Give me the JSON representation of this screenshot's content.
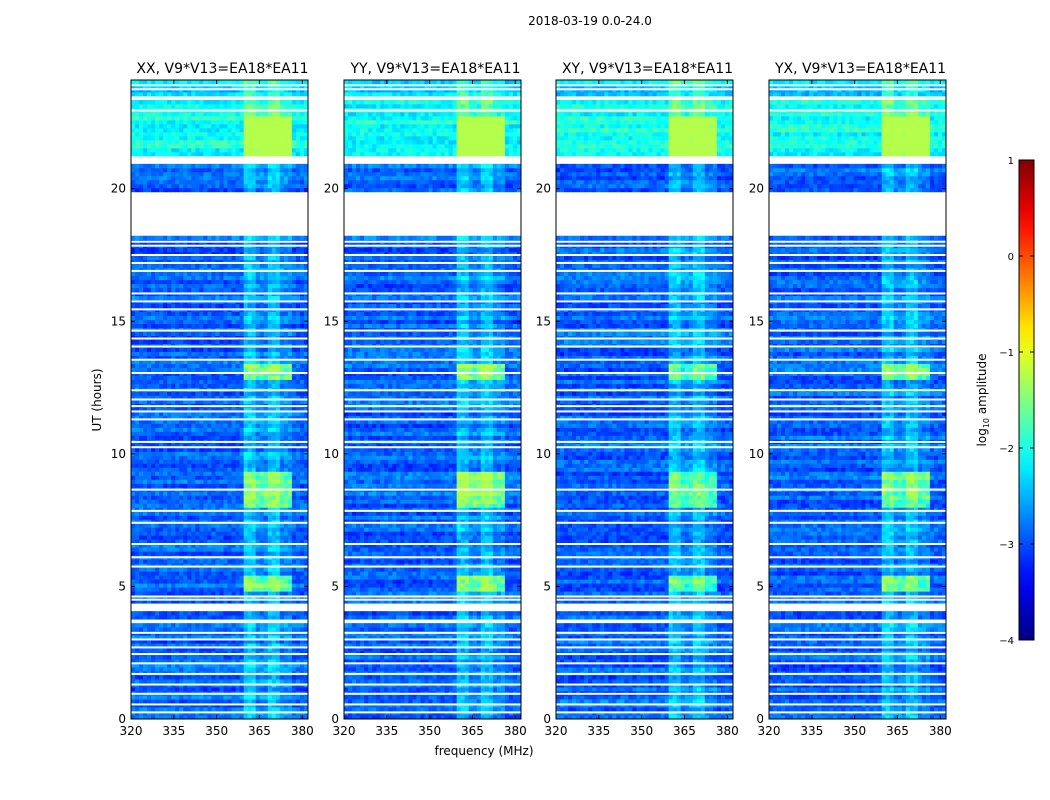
{
  "chart_data": {
    "type": "heatmap",
    "suptitle": "2018-03-19 0.0-24.0",
    "xlabel": "frequency (MHz)",
    "ylabel": "UT (hours)",
    "xlim": [
      320,
      382
    ],
    "ylim": [
      0,
      24.1
    ],
    "xticks": [
      320,
      335,
      350,
      365,
      380
    ],
    "yticks": [
      0,
      5,
      10,
      15,
      20
    ],
    "panels": [
      {
        "title": "XX, V9*V13=EA18*EA11",
        "gain": 1.0
      },
      {
        "title": "YY, V9*V13=EA18*EA11",
        "gain": 1.15
      },
      {
        "title": "XY, V9*V13=EA18*EA11",
        "gain": 0.9
      },
      {
        "title": "YX, V9*V13=EA18*EA11",
        "gain": 0.95
      }
    ],
    "colorbar": {
      "label_prefix": "log",
      "label_sub": "10",
      "label_suffix": " amplitude",
      "min": -4,
      "max": 1,
      "ticks": [
        -4,
        -3,
        -2,
        -1,
        0,
        1
      ],
      "colormap": "jet"
    },
    "flagged_intervals_hours": [
      [
        18.2,
        19.95
      ],
      [
        20.95,
        21.2
      ],
      [
        23.4,
        23.55
      ],
      [
        4.05,
        4.3
      ],
      [
        3.55,
        3.75
      ]
    ],
    "bright_time_bands_hours": [
      [
        4.8,
        5.4
      ],
      [
        7.95,
        9.4
      ],
      [
        12.8,
        13.4
      ],
      [
        21.3,
        22.7
      ]
    ],
    "rfi_frequency_range_mhz": [
      360,
      377
    ]
  }
}
